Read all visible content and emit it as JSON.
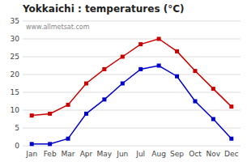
{
  "chart_data": {
    "type": "line",
    "title": "Yokkaichi : temperatures (°C)",
    "annotation": "www.allmetsat.com",
    "categories": [
      "Jan",
      "Feb",
      "Mar",
      "Apr",
      "May",
      "Jun",
      "Jul",
      "Aug",
      "Sep",
      "Oct",
      "Nov",
      "Dec"
    ],
    "series": [
      {
        "color": "#cc0000",
        "values": [
          8.5,
          9.0,
          11.5,
          17.5,
          21.5,
          25.0,
          28.5,
          30.0,
          26.5,
          21.0,
          16.0,
          11.0
        ]
      },
      {
        "color": "#0000cc",
        "values": [
          0.5,
          0.5,
          2.0,
          9.0,
          13.0,
          17.5,
          21.5,
          22.5,
          19.5,
          12.5,
          7.5,
          2.0
        ]
      }
    ],
    "marker": "square",
    "ylim": [
      0,
      35
    ],
    "yticks": [
      0,
      5,
      10,
      15,
      20,
      25,
      30,
      35
    ],
    "grid": true
  }
}
